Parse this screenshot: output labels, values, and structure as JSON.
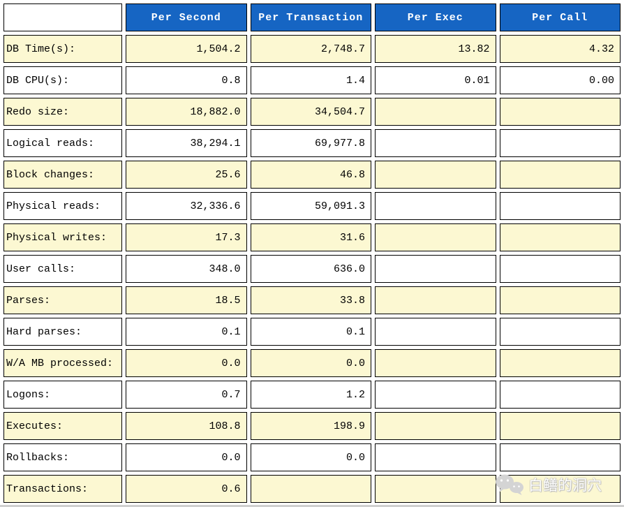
{
  "chart_data": {
    "type": "table",
    "columns": [
      "",
      "Per Second",
      "Per Transaction",
      "Per Exec",
      "Per Call"
    ],
    "rows": [
      {
        "label": "DB Time(s):",
        "values": [
          "1,504.2",
          "2,748.7",
          "13.82",
          "4.32"
        ]
      },
      {
        "label": "DB CPU(s):",
        "values": [
          "0.8",
          "1.4",
          "0.01",
          "0.00"
        ]
      },
      {
        "label": "Redo size:",
        "values": [
          "18,882.0",
          "34,504.7",
          "",
          ""
        ]
      },
      {
        "label": "Logical reads:",
        "values": [
          "38,294.1",
          "69,977.8",
          "",
          ""
        ]
      },
      {
        "label": "Block changes:",
        "values": [
          "25.6",
          "46.8",
          "",
          ""
        ]
      },
      {
        "label": "Physical reads:",
        "values": [
          "32,336.6",
          "59,091.3",
          "",
          ""
        ]
      },
      {
        "label": "Physical writes:",
        "values": [
          "17.3",
          "31.6",
          "",
          ""
        ]
      },
      {
        "label": "User calls:",
        "values": [
          "348.0",
          "636.0",
          "",
          ""
        ]
      },
      {
        "label": "Parses:",
        "values": [
          "18.5",
          "33.8",
          "",
          ""
        ]
      },
      {
        "label": "Hard parses:",
        "values": [
          "0.1",
          "0.1",
          "",
          ""
        ]
      },
      {
        "label": "W/A MB processed:",
        "values": [
          "0.0",
          "0.0",
          "",
          ""
        ]
      },
      {
        "label": "Logons:",
        "values": [
          "0.7",
          "1.2",
          "",
          ""
        ]
      },
      {
        "label": "Executes:",
        "values": [
          "108.8",
          "198.9",
          "",
          ""
        ]
      },
      {
        "label": "Rollbacks:",
        "values": [
          "0.0",
          "0.0",
          "",
          ""
        ]
      },
      {
        "label": "Transactions:",
        "values": [
          "0.6",
          "",
          "",
          ""
        ]
      }
    ],
    "layout": {
      "grid": "bordered-cells",
      "row_striping": "yellow-white-alternating",
      "first_column": "row-labels",
      "value_alignment": "right"
    }
  },
  "watermark": {
    "text": "白鳝的洞穴",
    "icon": "wechat-icon"
  },
  "colors": {
    "header_bg": "#1665C3",
    "header_text": "#FFFFFF",
    "row_yellow": "#FCF8D2",
    "row_white": "#FFFFFF",
    "border_color": "#000000",
    "watermark_gray": "#D4D4D4"
  }
}
